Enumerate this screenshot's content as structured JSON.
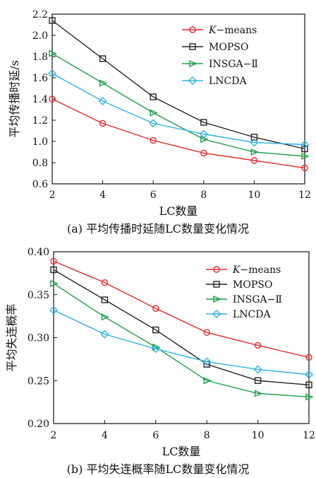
{
  "chart_data": [
    {
      "type": "line",
      "xlabel": "LC数量",
      "ylabel": "平均传播时延/s",
      "caption": "(a) 平均传播时延随LC数量变化情况",
      "x": [
        2,
        4,
        6,
        8,
        10,
        12
      ],
      "xlim": [
        2,
        12
      ],
      "ylim": [
        0.6,
        2.2
      ],
      "xticks": [
        "2",
        "4",
        "6",
        "8",
        "10",
        "12"
      ],
      "yticks": [
        "0.6",
        "0.8",
        "1.0",
        "1.2",
        "1.4",
        "1.6",
        "1.8",
        "2.0",
        "2.2"
      ],
      "grid": false,
      "legend_position": "top-right",
      "series": [
        {
          "name_prefix": "K",
          "name": "−means",
          "color": "#e8292a",
          "marker": "circle",
          "values": [
            1.4,
            1.17,
            1.01,
            0.89,
            0.82,
            0.75
          ]
        },
        {
          "name": "MOPSO",
          "color": "#222222",
          "marker": "square",
          "values": [
            2.14,
            1.78,
            1.42,
            1.18,
            1.04,
            0.93
          ]
        },
        {
          "name": "INSGA−Ⅱ",
          "color": "#1f9e48",
          "marker": "triangle-right",
          "values": [
            1.83,
            1.55,
            1.27,
            1.02,
            0.9,
            0.86
          ]
        },
        {
          "name": "LNCDA",
          "color": "#2fb3e6",
          "marker": "diamond",
          "values": [
            1.64,
            1.38,
            1.17,
            1.07,
            0.99,
            0.97
          ]
        }
      ]
    },
    {
      "type": "line",
      "xlabel": "LC数量",
      "ylabel": "平均失连概率",
      "caption": "(b) 平均失连概率随LC数量变化情况",
      "x": [
        2,
        4,
        6,
        8,
        10,
        12
      ],
      "xlim": [
        2,
        12
      ],
      "ylim": [
        0.2,
        0.4
      ],
      "xticks": [
        "2",
        "4",
        "6",
        "8",
        "10",
        "12"
      ],
      "yticks": [
        "0.20",
        "0.25",
        "0.30",
        "0.35",
        "0.40"
      ],
      "grid": false,
      "legend_position": "top-right",
      "series": [
        {
          "name_prefix": "K",
          "name": "−means",
          "color": "#e8292a",
          "marker": "circle",
          "values": [
            0.389,
            0.364,
            0.334,
            0.306,
            0.291,
            0.277
          ]
        },
        {
          "name": "MOPSO",
          "color": "#222222",
          "marker": "square",
          "values": [
            0.379,
            0.344,
            0.309,
            0.269,
            0.25,
            0.245
          ]
        },
        {
          "name": "INSGA−Ⅱ",
          "color": "#1f9e48",
          "marker": "triangle-right",
          "values": [
            0.363,
            0.324,
            0.289,
            0.25,
            0.235,
            0.231
          ]
        },
        {
          "name": "LNCDA",
          "color": "#2fb3e6",
          "marker": "diamond",
          "values": [
            0.332,
            0.304,
            0.287,
            0.272,
            0.263,
            0.257
          ]
        }
      ]
    }
  ]
}
